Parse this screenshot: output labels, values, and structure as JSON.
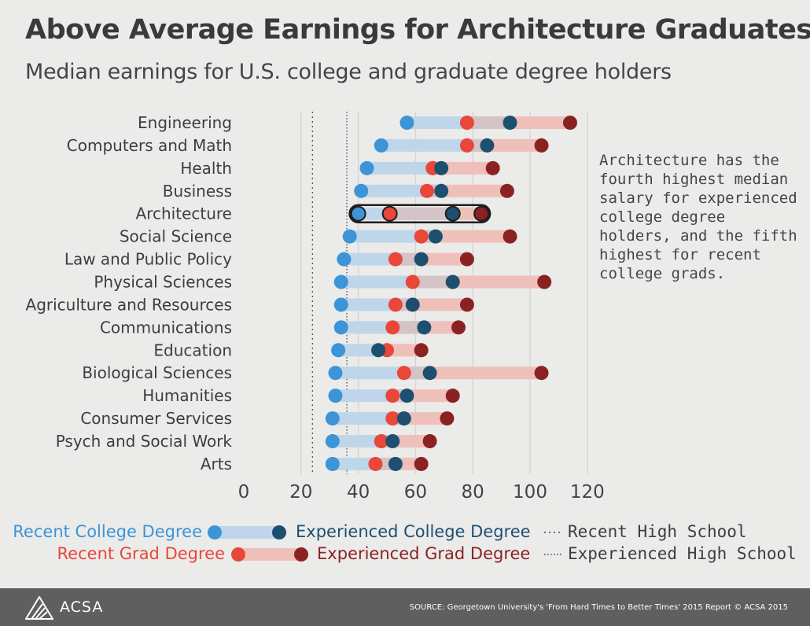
{
  "header": {
    "title": "Above Average Earnings for Architecture Graduates",
    "subtitle": "Median earnings for U.S. college and graduate degree holders"
  },
  "annotation": "Architecture has the fourth highest median salary for experienced college degree holders, and the fifth highest for recent college grads.",
  "legend": {
    "recent_college": "Recent College Degree",
    "experienced_college": "Experienced College Degree",
    "recent_grad": "Recent Grad Degree",
    "experienced_grad": "Experienced Grad Degree",
    "recent_high_school": "Recent High School",
    "experienced_high_school": "Experienced High School"
  },
  "footer": {
    "logo": "ACSA",
    "source": "SOURCE: Georgetown University's 'From Hard Times to Better Times' 2015 Report   © ACSA 2015"
  },
  "colors": {
    "recent_college": "#3d94d6",
    "experienced_college": "#1d4f70",
    "recent_grad": "#e8473a",
    "experienced_grad": "#8b2222",
    "college_bar": "#bfd6ea",
    "grad_bar": "#efc0b9",
    "overlap_bar": "#d4c3c7"
  },
  "chart_data": {
    "type": "dot-range",
    "categories": [
      "Engineering",
      "Computers and Math",
      "Health",
      "Business",
      "Architecture",
      "Social Science",
      "Law and Public Policy",
      "Physical Sciences",
      "Agriculture and Resources",
      "Communications",
      "Education",
      "Biological Sciences",
      "Humanities",
      "Consumer Services",
      "Psych and Social Work",
      "Arts"
    ],
    "highlight": "Architecture",
    "series": [
      {
        "name": "Recent College Degree",
        "values": [
          57,
          48,
          43,
          41,
          40,
          37,
          35,
          34,
          34,
          34,
          33,
          32,
          32,
          31,
          31,
          31
        ]
      },
      {
        "name": "Experienced College Degree",
        "values": [
          93,
          85,
          69,
          69,
          73,
          67,
          62,
          73,
          59,
          63,
          47,
          65,
          57,
          56,
          52,
          53
        ]
      },
      {
        "name": "Recent Grad Degree",
        "values": [
          78,
          78,
          66,
          64,
          51,
          62,
          53,
          59,
          53,
          52,
          50,
          56,
          52,
          52,
          48,
          46
        ]
      },
      {
        "name": "Experienced Grad Degree",
        "values": [
          114,
          104,
          87,
          92,
          83,
          93,
          78,
          105,
          78,
          75,
          62,
          104,
          73,
          71,
          65,
          62
        ]
      }
    ],
    "reference_lines": [
      {
        "name": "Recent High School",
        "value": 24,
        "style": "dotted"
      },
      {
        "name": "Experienced High School",
        "value": 36,
        "style": "dotted"
      }
    ],
    "xticks": [
      0,
      20,
      40,
      60,
      80,
      100,
      120
    ],
    "xlim": [
      0,
      120
    ],
    "grid": true
  }
}
